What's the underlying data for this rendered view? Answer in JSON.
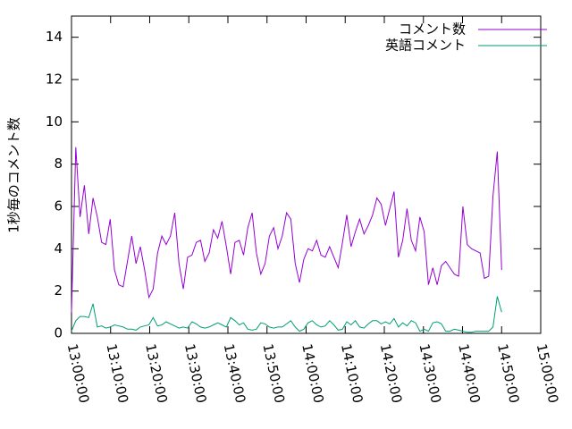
{
  "chart_data": {
    "type": "line",
    "y_label": "1秒毎のコメント数",
    "x": [
      "13:00:00",
      "13:01:06",
      "13:02:12",
      "13:03:18",
      "13:04:24",
      "13:05:30",
      "13:06:36",
      "13:07:42",
      "13:08:48",
      "13:09:54",
      "13:11:00",
      "13:12:06",
      "13:13:12",
      "13:14:18",
      "13:15:24",
      "13:16:30",
      "13:17:36",
      "13:18:42",
      "13:19:48",
      "13:20:54",
      "13:22:00",
      "13:23:06",
      "13:24:12",
      "13:25:18",
      "13:26:24",
      "13:27:30",
      "13:28:36",
      "13:29:42",
      "13:30:48",
      "13:31:54",
      "13:33:00",
      "13:34:06",
      "13:35:12",
      "13:36:18",
      "13:37:24",
      "13:38:30",
      "13:39:36",
      "13:40:42",
      "13:41:48",
      "13:42:54",
      "13:44:00",
      "13:45:06",
      "13:46:12",
      "13:47:18",
      "13:48:24",
      "13:49:30",
      "13:50:36",
      "13:51:42",
      "13:52:48",
      "13:53:54",
      "13:55:00",
      "13:56:06",
      "13:57:12",
      "13:58:18",
      "13:59:24",
      "14:00:30",
      "14:01:36",
      "14:02:42",
      "14:03:48",
      "14:04:54",
      "14:06:00",
      "14:07:06",
      "14:08:12",
      "14:09:18",
      "14:10:24",
      "14:11:30",
      "14:12:36",
      "14:13:42",
      "14:14:48",
      "14:15:54",
      "14:17:00",
      "14:18:06",
      "14:19:12",
      "14:20:18",
      "14:21:24",
      "14:22:30",
      "14:23:36",
      "14:24:42",
      "14:25:48",
      "14:26:54",
      "14:28:00",
      "14:29:06",
      "14:30:12",
      "14:31:18",
      "14:32:24",
      "14:33:30",
      "14:34:36",
      "14:35:42",
      "14:36:48",
      "14:37:54",
      "14:39:00",
      "14:40:06",
      "14:41:12",
      "14:42:18",
      "14:43:24",
      "14:44:30",
      "14:45:36",
      "14:46:42",
      "14:47:48",
      "14:48:54",
      "14:50:00"
    ],
    "series": [
      {
        "name": "コメント数",
        "color": "#9400d3",
        "values": [
          1.0,
          8.8,
          5.5,
          7.0,
          4.7,
          6.4,
          5.5,
          4.3,
          4.2,
          5.4,
          3.0,
          2.3,
          2.2,
          3.4,
          4.6,
          3.3,
          4.1,
          3.0,
          1.7,
          2.1,
          3.8,
          4.6,
          4.2,
          4.6,
          5.7,
          3.3,
          2.1,
          3.6,
          3.7,
          4.3,
          4.4,
          3.4,
          3.8,
          4.9,
          4.5,
          5.3,
          4.1,
          2.8,
          4.3,
          4.4,
          3.7,
          5.0,
          5.7,
          3.8,
          2.8,
          3.3,
          4.6,
          5.0,
          4.0,
          4.6,
          5.7,
          5.4,
          3.3,
          2.4,
          3.5,
          4.0,
          3.9,
          4.4,
          3.7,
          3.6,
          4.1,
          3.6,
          3.1,
          4.3,
          5.6,
          4.1,
          4.8,
          5.4,
          4.7,
          5.1,
          5.6,
          6.4,
          6.1,
          5.1,
          5.9,
          6.7,
          3.6,
          4.4,
          5.9,
          4.4,
          3.9,
          5.5,
          4.8,
          2.3,
          3.1,
          2.3,
          3.2,
          3.4,
          3.1,
          2.8,
          2.7,
          6.0,
          4.2,
          4.0,
          3.9,
          3.8,
          2.6,
          2.7,
          6.5,
          8.6,
          3.0
        ]
      },
      {
        "name": "英語コメント",
        "color": "#009e73",
        "values": [
          0.1,
          0.6,
          0.8,
          0.8,
          0.75,
          1.4,
          0.3,
          0.35,
          0.25,
          0.3,
          0.4,
          0.35,
          0.3,
          0.2,
          0.2,
          0.15,
          0.3,
          0.35,
          0.4,
          0.75,
          0.35,
          0.4,
          0.55,
          0.45,
          0.35,
          0.25,
          0.3,
          0.25,
          0.55,
          0.45,
          0.3,
          0.25,
          0.3,
          0.4,
          0.5,
          0.4,
          0.3,
          0.75,
          0.6,
          0.4,
          0.5,
          0.2,
          0.15,
          0.2,
          0.5,
          0.45,
          0.3,
          0.25,
          0.3,
          0.3,
          0.45,
          0.6,
          0.3,
          0.1,
          0.2,
          0.5,
          0.6,
          0.4,
          0.3,
          0.35,
          0.6,
          0.4,
          0.15,
          0.2,
          0.55,
          0.4,
          0.6,
          0.3,
          0.25,
          0.45,
          0.6,
          0.6,
          0.45,
          0.55,
          0.45,
          0.7,
          0.3,
          0.5,
          0.35,
          0.6,
          0.5,
          0.1,
          0.2,
          0.1,
          0.5,
          0.55,
          0.45,
          0.1,
          0.1,
          0.2,
          0.15,
          0.1,
          0.05,
          0.05,
          0.1,
          0.1,
          0.1,
          0.1,
          0.3,
          1.75,
          1.0
        ]
      }
    ],
    "xlim": [
      "13:00:00",
      "15:00:00"
    ],
    "xticks": [
      "13:00:00",
      "13:10:00",
      "13:20:00",
      "13:30:00",
      "13:40:00",
      "13:50:00",
      "14:00:00",
      "14:10:00",
      "14:20:00",
      "14:30:00",
      "14:40:00",
      "14:50:00",
      "15:00:00"
    ],
    "ylim": [
      0,
      15
    ],
    "yticks": [
      0,
      2,
      4,
      6,
      8,
      10,
      12,
      14
    ],
    "grid": false,
    "legend": "top-right"
  }
}
